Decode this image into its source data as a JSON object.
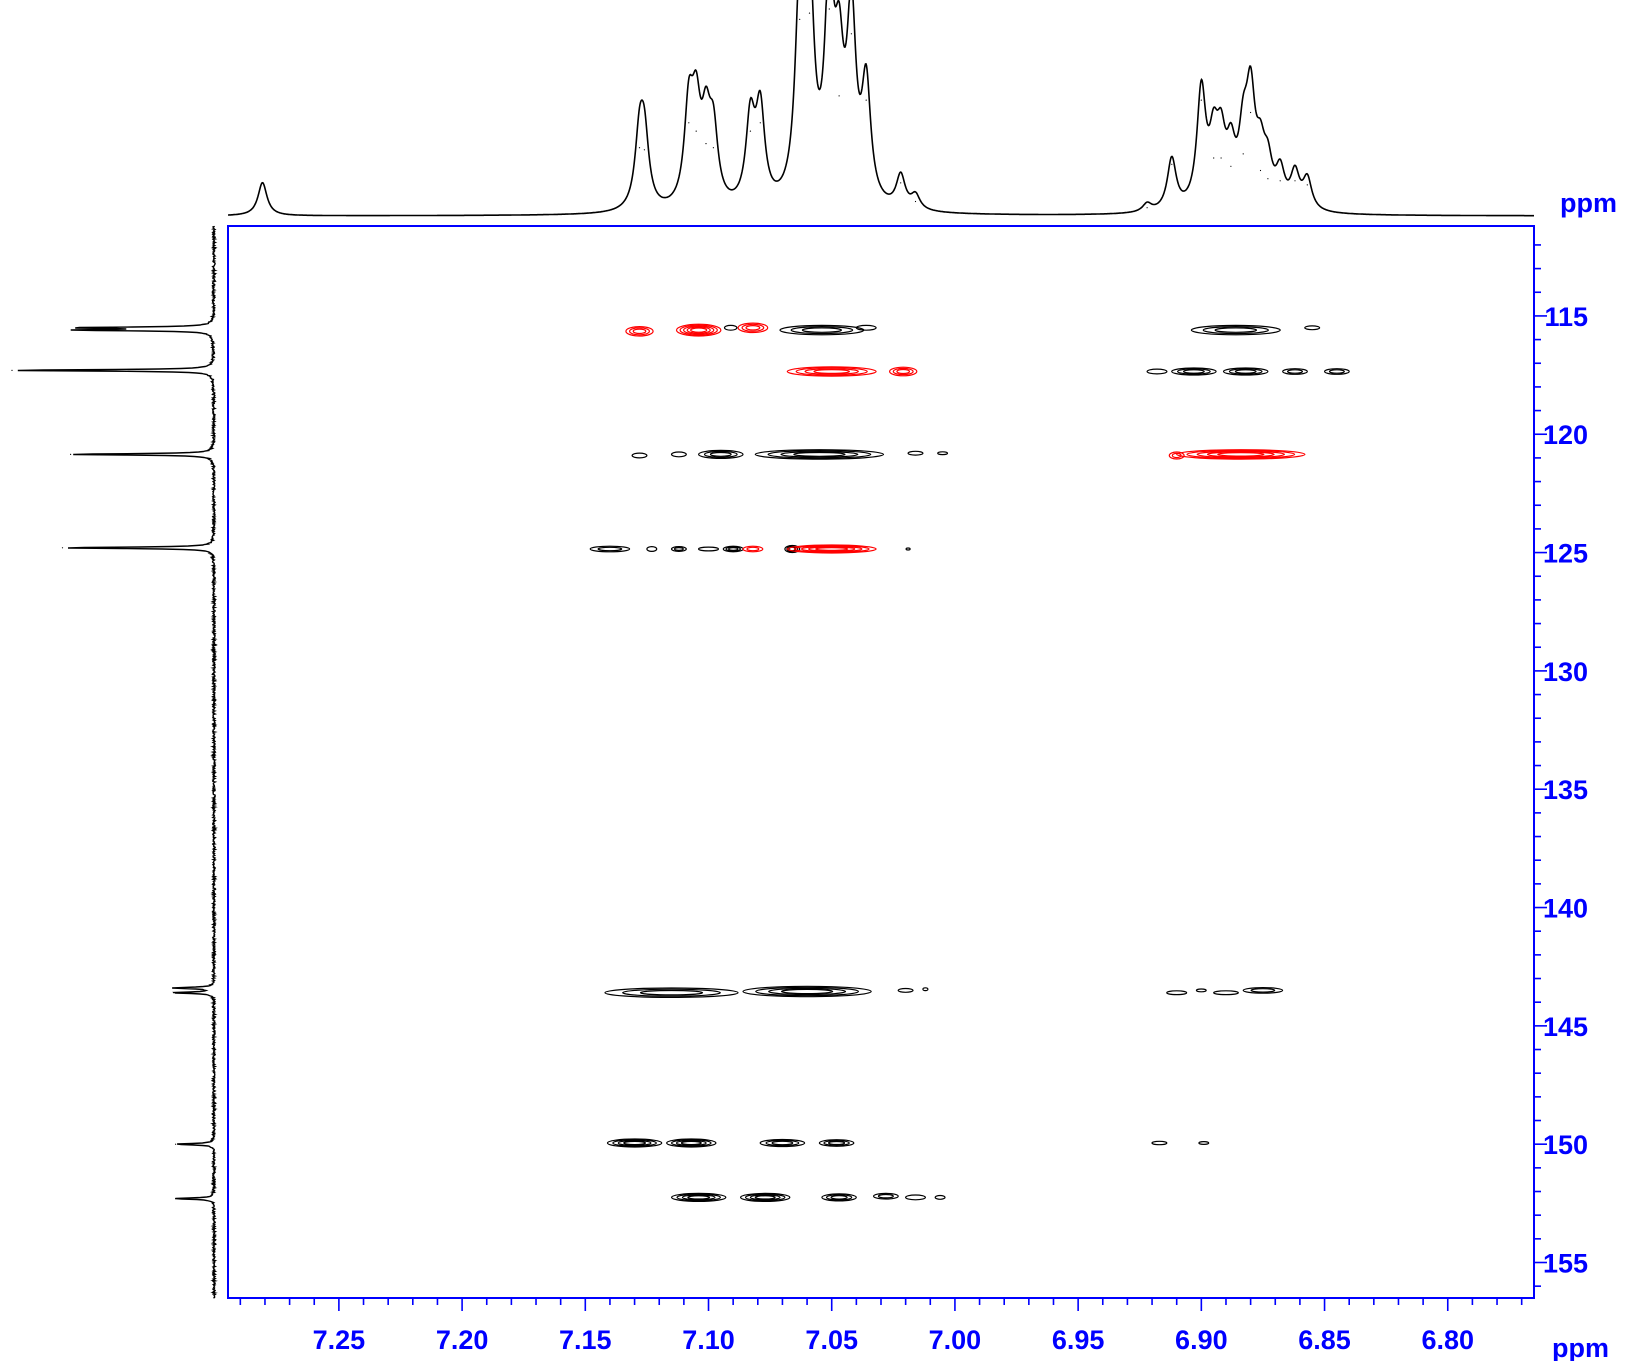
{
  "chart_data": {
    "type": "heatmap",
    "title": "",
    "xlabel": "ppm",
    "ylabel": "ppm",
    "xlim": [
      7.295,
      6.765
    ],
    "ylim": [
      111.2,
      156.5
    ],
    "x_ticks": [
      "7.25",
      "7.20",
      "7.15",
      "7.10",
      "7.05",
      "7.00",
      "6.95",
      "6.90",
      "6.85",
      "6.80"
    ],
    "y_ticks": [
      "115",
      "120",
      "125",
      "130",
      "135",
      "140",
      "145",
      "150",
      "155"
    ],
    "grid": false,
    "colors": {
      "axis": "#0000ff",
      "positive": "#000000",
      "negative": "#ff0000",
      "trace": "#000000"
    },
    "top_projection_peaks": [
      {
        "x": 7.281,
        "h": 0.16
      },
      {
        "x": 7.128,
        "h": 0.33
      },
      {
        "x": 7.126,
        "h": 0.32
      },
      {
        "x": 7.108,
        "h": 0.45
      },
      {
        "x": 7.105,
        "h": 0.41
      },
      {
        "x": 7.101,
        "h": 0.35
      },
      {
        "x": 7.098,
        "h": 0.33
      },
      {
        "x": 7.083,
        "h": 0.41
      },
      {
        "x": 7.079,
        "h": 0.45
      },
      {
        "x": 7.063,
        "h": 0.95
      },
      {
        "x": 7.059,
        "h": 0.98
      },
      {
        "x": 7.051,
        "h": 1.0
      },
      {
        "x": 7.047,
        "h": 0.58
      },
      {
        "x": 7.042,
        "h": 0.88
      },
      {
        "x": 7.036,
        "h": 0.56
      },
      {
        "x": 7.022,
        "h": 0.16
      },
      {
        "x": 7.016,
        "h": 0.07
      },
      {
        "x": 6.922,
        "h": 0.04
      },
      {
        "x": 6.912,
        "h": 0.25
      },
      {
        "x": 6.9,
        "h": 0.56
      },
      {
        "x": 6.895,
        "h": 0.28
      },
      {
        "x": 6.892,
        "h": 0.28
      },
      {
        "x": 6.888,
        "h": 0.24
      },
      {
        "x": 6.883,
        "h": 0.3
      },
      {
        "x": 6.88,
        "h": 0.5
      },
      {
        "x": 6.876,
        "h": 0.22
      },
      {
        "x": 6.873,
        "h": 0.18
      },
      {
        "x": 6.868,
        "h": 0.17
      },
      {
        "x": 6.862,
        "h": 0.17
      },
      {
        "x": 6.857,
        "h": 0.15
      }
    ],
    "left_projection_peaks": [
      {
        "y": 115.5,
        "h": 0.66
      },
      {
        "y": 115.6,
        "h": 0.64
      },
      {
        "y": 117.3,
        "h": 1.0
      },
      {
        "y": 120.85,
        "h": 0.71
      },
      {
        "y": 124.8,
        "h": 0.75
      },
      {
        "y": 143.4,
        "h": 0.2
      },
      {
        "y": 143.6,
        "h": 0.2
      },
      {
        "y": 150.0,
        "h": 0.19
      },
      {
        "y": 152.3,
        "h": 0.19
      }
    ],
    "cross_peaks": [
      {
        "phase": "negative",
        "x": 7.128,
        "y": 115.65,
        "rx": 0.0055,
        "ry": 0.2,
        "levels": 3
      },
      {
        "phase": "negative",
        "x": 7.104,
        "y": 115.6,
        "rx": 0.009,
        "ry": 0.25,
        "levels": 5
      },
      {
        "phase": "negative",
        "x": 7.082,
        "y": 115.5,
        "rx": 0.006,
        "ry": 0.2,
        "levels": 3
      },
      {
        "phase": "positive",
        "x": 7.091,
        "y": 115.5,
        "rx": 0.0025,
        "ry": 0.1,
        "levels": 1
      },
      {
        "phase": "positive",
        "x": 7.054,
        "y": 115.6,
        "rx": 0.017,
        "ry": 0.2,
        "levels": 3
      },
      {
        "phase": "positive",
        "x": 7.036,
        "y": 115.5,
        "rx": 0.004,
        "ry": 0.1,
        "levels": 1
      },
      {
        "phase": "negative",
        "x": 7.05,
        "y": 117.35,
        "rx": 0.018,
        "ry": 0.2,
        "levels": 4
      },
      {
        "phase": "negative",
        "x": 7.021,
        "y": 117.35,
        "rx": 0.0055,
        "ry": 0.18,
        "levels": 3
      },
      {
        "phase": "positive",
        "x": 6.918,
        "y": 117.35,
        "rx": 0.004,
        "ry": 0.1,
        "levels": 1
      },
      {
        "phase": "positive",
        "x": 6.903,
        "y": 117.35,
        "rx": 0.009,
        "ry": 0.15,
        "levels": 3
      },
      {
        "phase": "positive",
        "x": 6.882,
        "y": 117.35,
        "rx": 0.009,
        "ry": 0.15,
        "levels": 3
      },
      {
        "phase": "positive",
        "x": 6.862,
        "y": 117.35,
        "rx": 0.005,
        "ry": 0.12,
        "levels": 2
      },
      {
        "phase": "positive",
        "x": 6.845,
        "y": 117.35,
        "rx": 0.005,
        "ry": 0.12,
        "levels": 2
      },
      {
        "phase": "positive",
        "x": 6.886,
        "y": 115.6,
        "rx": 0.018,
        "ry": 0.2,
        "levels": 3
      },
      {
        "phase": "positive",
        "x": 6.855,
        "y": 115.5,
        "rx": 0.003,
        "ry": 0.08,
        "levels": 1
      },
      {
        "phase": "positive",
        "x": 7.128,
        "y": 120.9,
        "rx": 0.003,
        "ry": 0.1,
        "levels": 1
      },
      {
        "phase": "positive",
        "x": 7.112,
        "y": 120.85,
        "rx": 0.003,
        "ry": 0.1,
        "levels": 1
      },
      {
        "phase": "positive",
        "x": 7.095,
        "y": 120.85,
        "rx": 0.009,
        "ry": 0.17,
        "levels": 3
      },
      {
        "phase": "positive",
        "x": 7.055,
        "y": 120.85,
        "rx": 0.026,
        "ry": 0.2,
        "levels": 4
      },
      {
        "phase": "positive",
        "x": 7.016,
        "y": 120.8,
        "rx": 0.003,
        "ry": 0.08,
        "levels": 1
      },
      {
        "phase": "positive",
        "x": 7.005,
        "y": 120.8,
        "rx": 0.002,
        "ry": 0.06,
        "levels": 1
      },
      {
        "phase": "negative",
        "x": 6.91,
        "y": 120.9,
        "rx": 0.003,
        "ry": 0.15,
        "levels": 2
      },
      {
        "phase": "negative",
        "x": 6.884,
        "y": 120.85,
        "rx": 0.026,
        "ry": 0.2,
        "levels": 5
      },
      {
        "phase": "positive",
        "x": 7.14,
        "y": 124.85,
        "rx": 0.008,
        "ry": 0.12,
        "levels": 2
      },
      {
        "phase": "positive",
        "x": 7.123,
        "y": 124.85,
        "rx": 0.002,
        "ry": 0.1,
        "levels": 1
      },
      {
        "phase": "positive",
        "x": 7.112,
        "y": 124.85,
        "rx": 0.003,
        "ry": 0.1,
        "levels": 2
      },
      {
        "phase": "positive",
        "x": 7.1,
        "y": 124.85,
        "rx": 0.004,
        "ry": 0.08,
        "levels": 1
      },
      {
        "phase": "positive",
        "x": 7.09,
        "y": 124.85,
        "rx": 0.004,
        "ry": 0.12,
        "levels": 3
      },
      {
        "phase": "negative",
        "x": 7.082,
        "y": 124.85,
        "rx": 0.004,
        "ry": 0.12,
        "levels": 2
      },
      {
        "phase": "positive",
        "x": 7.066,
        "y": 124.85,
        "rx": 0.003,
        "ry": 0.15,
        "levels": 3
      },
      {
        "phase": "negative",
        "x": 7.05,
        "y": 124.85,
        "rx": 0.018,
        "ry": 0.17,
        "levels": 5
      },
      {
        "phase": "positive",
        "x": 7.019,
        "y": 124.85,
        "rx": 0.0008,
        "ry": 0.04,
        "levels": 1
      },
      {
        "phase": "positive",
        "x": 7.115,
        "y": 143.6,
        "rx": 0.027,
        "ry": 0.2,
        "levels": 3
      },
      {
        "phase": "positive",
        "x": 7.06,
        "y": 143.55,
        "rx": 0.026,
        "ry": 0.22,
        "levels": 4
      },
      {
        "phase": "positive",
        "x": 7.02,
        "y": 143.5,
        "rx": 0.003,
        "ry": 0.08,
        "levels": 1
      },
      {
        "phase": "positive",
        "x": 7.012,
        "y": 143.45,
        "rx": 0.001,
        "ry": 0.06,
        "levels": 1
      },
      {
        "phase": "positive",
        "x": 6.91,
        "y": 143.6,
        "rx": 0.004,
        "ry": 0.08,
        "levels": 1
      },
      {
        "phase": "positive",
        "x": 6.9,
        "y": 143.5,
        "rx": 0.002,
        "ry": 0.06,
        "levels": 1
      },
      {
        "phase": "positive",
        "x": 6.89,
        "y": 143.6,
        "rx": 0.005,
        "ry": 0.08,
        "levels": 1
      },
      {
        "phase": "positive",
        "x": 6.875,
        "y": 143.5,
        "rx": 0.008,
        "ry": 0.12,
        "levels": 2
      },
      {
        "phase": "positive",
        "x": 7.13,
        "y": 149.95,
        "rx": 0.011,
        "ry": 0.17,
        "levels": 4
      },
      {
        "phase": "positive",
        "x": 7.107,
        "y": 149.95,
        "rx": 0.01,
        "ry": 0.17,
        "levels": 4
      },
      {
        "phase": "positive",
        "x": 7.07,
        "y": 149.95,
        "rx": 0.009,
        "ry": 0.15,
        "levels": 3
      },
      {
        "phase": "positive",
        "x": 7.048,
        "y": 149.95,
        "rx": 0.007,
        "ry": 0.14,
        "levels": 3
      },
      {
        "phase": "positive",
        "x": 6.917,
        "y": 149.95,
        "rx": 0.003,
        "ry": 0.07,
        "levels": 1
      },
      {
        "phase": "positive",
        "x": 6.899,
        "y": 149.95,
        "rx": 0.002,
        "ry": 0.06,
        "levels": 1
      },
      {
        "phase": "positive",
        "x": 7.104,
        "y": 152.25,
        "rx": 0.011,
        "ry": 0.17,
        "levels": 4
      },
      {
        "phase": "positive",
        "x": 7.077,
        "y": 152.25,
        "rx": 0.01,
        "ry": 0.17,
        "levels": 4
      },
      {
        "phase": "positive",
        "x": 7.047,
        "y": 152.25,
        "rx": 0.007,
        "ry": 0.15,
        "levels": 3
      },
      {
        "phase": "positive",
        "x": 7.028,
        "y": 152.2,
        "rx": 0.005,
        "ry": 0.12,
        "levels": 2
      },
      {
        "phase": "positive",
        "x": 7.016,
        "y": 152.25,
        "rx": 0.004,
        "ry": 0.1,
        "levels": 1
      },
      {
        "phase": "positive",
        "x": 7.006,
        "y": 152.25,
        "rx": 0.002,
        "ry": 0.08,
        "levels": 1
      }
    ]
  }
}
